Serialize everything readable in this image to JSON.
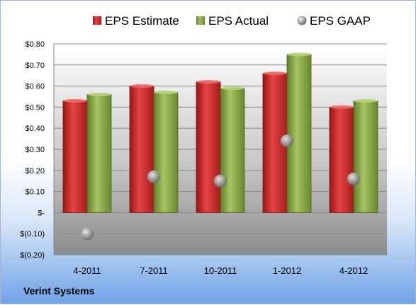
{
  "company_label": "Verint Systems",
  "chart_data": {
    "type": "bar",
    "categories": [
      "4-2011",
      "7-2011",
      "10-2011",
      "1-2012",
      "4-2012"
    ],
    "series": [
      {
        "name": "EPS Estimate",
        "kind": "bar",
        "color": "#d42a2a",
        "values": [
          0.53,
          0.6,
          0.62,
          0.66,
          0.5
        ]
      },
      {
        "name": "EPS Actual",
        "kind": "bar",
        "color": "#8fb04a",
        "values": [
          0.56,
          0.57,
          0.59,
          0.75,
          0.53
        ]
      },
      {
        "name": "EPS GAAP",
        "kind": "point",
        "color": "#9a9a9a",
        "values": [
          -0.1,
          0.17,
          0.15,
          0.34,
          0.16
        ]
      }
    ],
    "y_ticks": [
      {
        "value": 0.8,
        "label": "$0.80"
      },
      {
        "value": 0.7,
        "label": "$0.70"
      },
      {
        "value": 0.6,
        "label": "$0.60"
      },
      {
        "value": 0.5,
        "label": "$0.50"
      },
      {
        "value": 0.4,
        "label": "$0.40"
      },
      {
        "value": 0.3,
        "label": "$0.30"
      },
      {
        "value": 0.2,
        "label": "$0.20"
      },
      {
        "value": 0.1,
        "label": "$0.10"
      },
      {
        "value": 0.0,
        "label": "$-"
      },
      {
        "value": -0.1,
        "label": "$(0.10)"
      },
      {
        "value": -0.2,
        "label": "$(0.20)"
      }
    ],
    "ylim": [
      -0.2,
      0.8
    ],
    "grid": true,
    "legend_position": "top"
  }
}
